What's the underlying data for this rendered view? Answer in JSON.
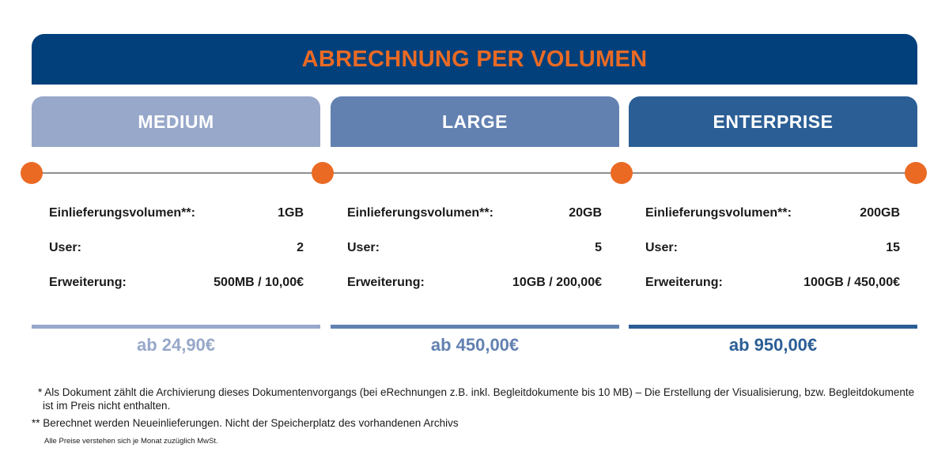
{
  "header": {
    "title": "ABRECHNUNG PER VOLUMEN"
  },
  "colors": {
    "banner": "#02407c",
    "title": "#ea6a24",
    "medium": "#97a8ca",
    "large": "#6281b1",
    "enterprise": "#2b5e95",
    "dot": "#ea6a24"
  },
  "plans": [
    {
      "name": "MEDIUM",
      "rows": [
        {
          "label": "Einlieferungsvolumen**:",
          "value": "1GB"
        },
        {
          "label": "User:",
          "value": "2"
        },
        {
          "label": "Erweiterung:",
          "value": "500MB / 10,00€"
        }
      ],
      "price": "ab 24,90€"
    },
    {
      "name": "LARGE",
      "rows": [
        {
          "label": "Einlieferungsvolumen**:",
          "value": "20GB"
        },
        {
          "label": "User:",
          "value": "5"
        },
        {
          "label": "Erweiterung:",
          "value": "10GB / 200,00€"
        }
      ],
      "price": "ab 450,00€"
    },
    {
      "name": "ENTERPRISE",
      "rows": [
        {
          "label": "Einlieferungsvolumen**:",
          "value": "200GB"
        },
        {
          "label": "User:",
          "value": "15"
        },
        {
          "label": "Erweiterung:",
          "value": "100GB / 450,00€"
        }
      ],
      "price": "ab 950,00€"
    }
  ],
  "footnotes": {
    "single_star": "* Als Dokument zählt die Archivierung dieses Dokumentenvorgangs (bei eRechnungen z.B. inkl. Begleitdokumente bis 10 MB) – Die Erstellung der Visualisierung, bzw. Begleitdokumente ist im Preis nicht enthalten.",
    "double_star": "** Berechnet werden Neueinlieferungen. Nicht der Speicherplatz des vorhandenen Archivs",
    "vat": "Alle Preise verstehen sich je Monat zuzüglich MwSt."
  }
}
